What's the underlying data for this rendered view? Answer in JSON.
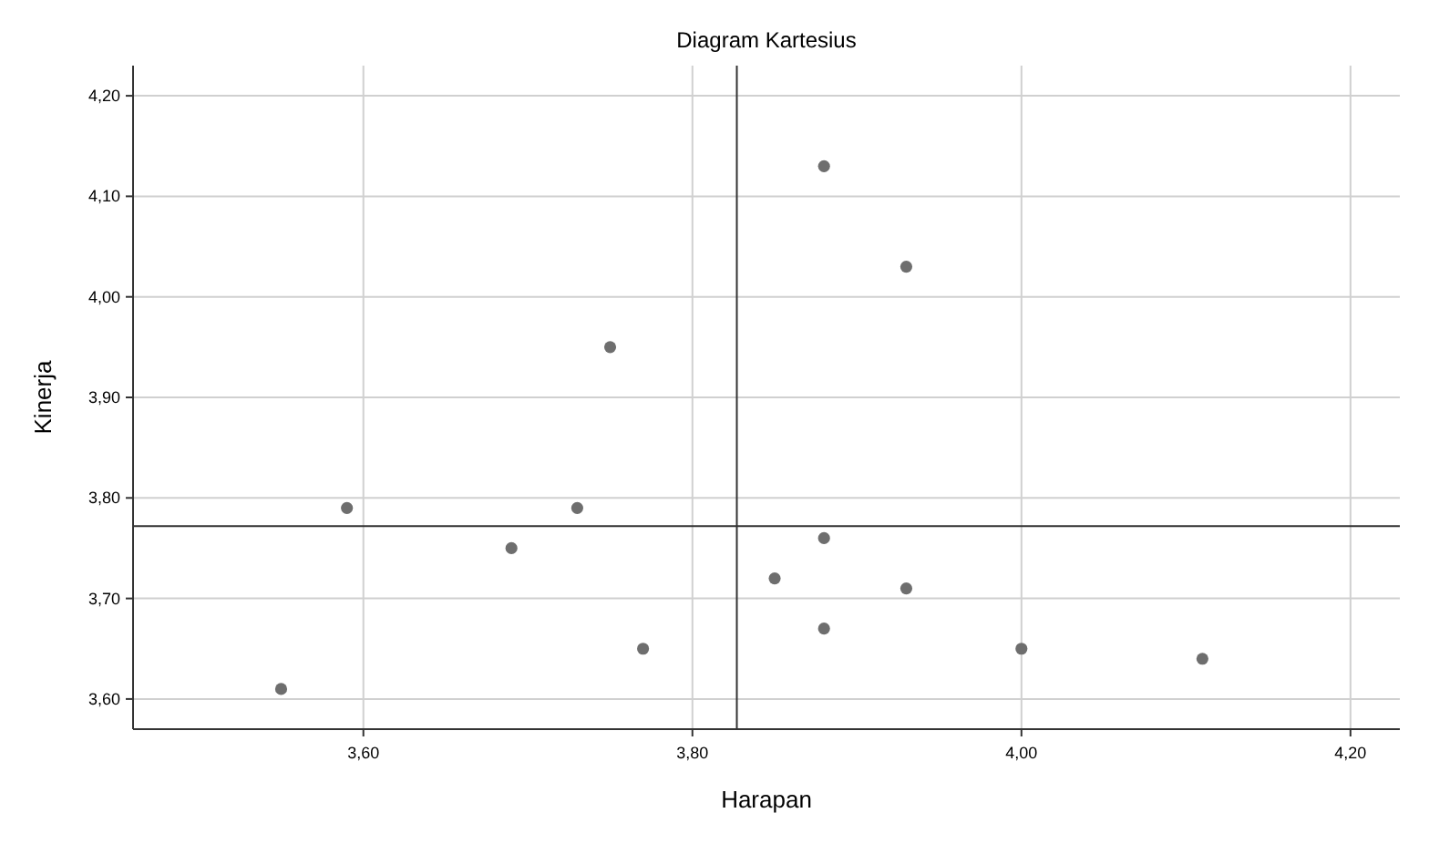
{
  "chart_data": {
    "type": "scatter",
    "title": "Diagram Kartesius",
    "xlabel": "Harapan",
    "ylabel": "Kinerja",
    "x": [
      3.55,
      3.59,
      3.69,
      3.73,
      3.75,
      3.77,
      3.85,
      3.88,
      3.88,
      3.88,
      3.93,
      3.93,
      4.0,
      4.11
    ],
    "series": [
      {
        "color": "#6e6e6e",
        "values": [
          3.61,
          3.79,
          3.75,
          3.79,
          3.95,
          3.65,
          3.72,
          4.13,
          3.76,
          3.67,
          4.03,
          3.71,
          3.65,
          3.64
        ]
      }
    ],
    "xlim": [
      3.46,
      4.23
    ],
    "ylim": [
      3.57,
      4.23
    ],
    "xticks": [
      {
        "value": 3.6,
        "label": "3,60"
      },
      {
        "value": 3.8,
        "label": "3,80"
      },
      {
        "value": 4.0,
        "label": "4,00"
      },
      {
        "value": 4.2,
        "label": "4,20"
      }
    ],
    "yticks": [
      {
        "value": 3.6,
        "label": "3,60"
      },
      {
        "value": 3.7,
        "label": "3,70"
      },
      {
        "value": 3.8,
        "label": "3,80"
      },
      {
        "value": 3.9,
        "label": "3,90"
      },
      {
        "value": 4.0,
        "label": "4,00"
      },
      {
        "value": 4.1,
        "label": "4,10"
      },
      {
        "value": 4.2,
        "label": "4,20"
      }
    ],
    "ref_lines": [
      {
        "axis": "x",
        "value": 3.827,
        "color": "#333333"
      },
      {
        "axis": "y",
        "value": 3.772,
        "color": "#333333"
      }
    ],
    "grid": true,
    "marker": "circle"
  }
}
